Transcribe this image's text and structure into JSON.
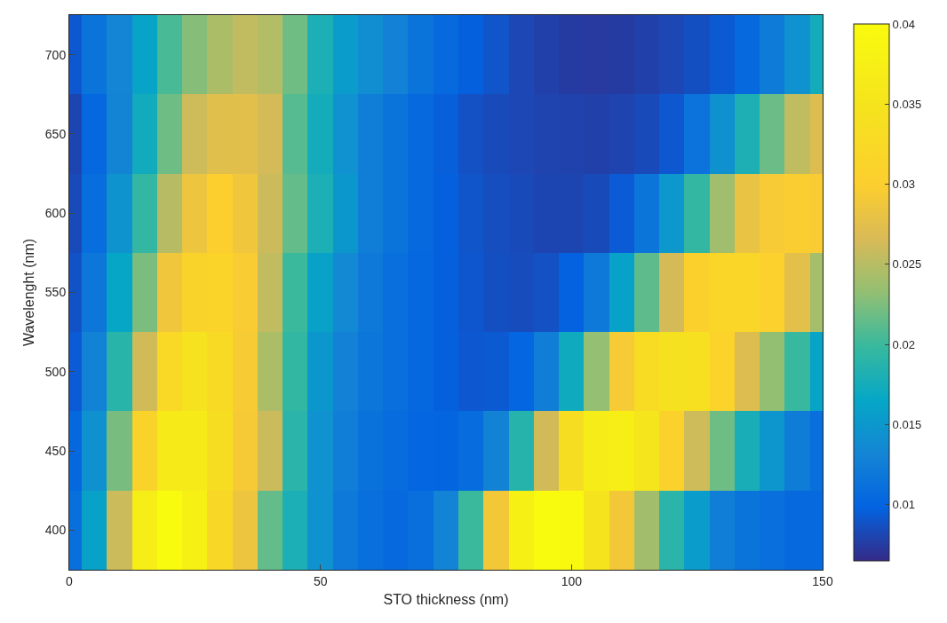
{
  "chart_data": {
    "type": "heatmap",
    "xlabel": "STO thickness (nm)",
    "ylabel": "Wavelenght (nm)",
    "x": [
      0,
      5,
      10,
      15,
      20,
      25,
      30,
      35,
      40,
      45,
      50,
      55,
      60,
      65,
      70,
      75,
      80,
      85,
      90,
      95,
      100,
      105,
      110,
      115,
      120,
      125,
      130,
      135,
      140,
      145,
      150
    ],
    "y_categories": [
      "700",
      "650",
      "600",
      "550",
      "500",
      "450",
      "400"
    ],
    "cells": [
      [
        0.0092,
        0.0115,
        0.0132,
        0.0163,
        0.0205,
        0.0228,
        0.0245,
        0.0255,
        0.0248,
        0.022,
        0.018,
        0.0155,
        0.014,
        0.0128,
        0.0115,
        0.0105,
        0.0097,
        0.009,
        0.0082,
        0.0078,
        0.0075,
        0.0074,
        0.0075,
        0.0078,
        0.0082,
        0.0087,
        0.0093,
        0.0105,
        0.0122,
        0.0145,
        0.0175
      ],
      [
        0.0081,
        0.0103,
        0.0131,
        0.0173,
        0.0219,
        0.0261,
        0.0274,
        0.0275,
        0.0264,
        0.021,
        0.0175,
        0.0145,
        0.0125,
        0.0115,
        0.0105,
        0.0096,
        0.0088,
        0.0084,
        0.0082,
        0.008,
        0.0079,
        0.0078,
        0.008,
        0.0084,
        0.0092,
        0.0114,
        0.0143,
        0.0181,
        0.0218,
        0.0254,
        0.0271
      ],
      [
        0.0084,
        0.0109,
        0.0146,
        0.0196,
        0.025,
        0.0285,
        0.03,
        0.0288,
        0.026,
        0.0215,
        0.018,
        0.015,
        0.0125,
        0.0115,
        0.0105,
        0.0097,
        0.009,
        0.0086,
        0.0084,
        0.0081,
        0.0081,
        0.0084,
        0.0094,
        0.0116,
        0.0151,
        0.0196,
        0.0239,
        0.0281,
        0.0294,
        0.0298,
        0.0296
      ],
      [
        0.0089,
        0.0118,
        0.0165,
        0.0224,
        0.0288,
        0.0311,
        0.0313,
        0.0296,
        0.0255,
        0.02,
        0.016,
        0.0135,
        0.012,
        0.011,
        0.0103,
        0.0097,
        0.0091,
        0.0087,
        0.0085,
        0.0088,
        0.0098,
        0.012,
        0.0161,
        0.0213,
        0.0264,
        0.0304,
        0.0318,
        0.0317,
        0.0303,
        0.0276,
        0.0241
      ],
      [
        0.0094,
        0.0129,
        0.0189,
        0.0262,
        0.0324,
        0.0345,
        0.0328,
        0.0295,
        0.0245,
        0.0195,
        0.015,
        0.0128,
        0.0117,
        0.011,
        0.0103,
        0.0097,
        0.0092,
        0.0093,
        0.0101,
        0.0124,
        0.0172,
        0.0234,
        0.0294,
        0.0332,
        0.0344,
        0.034,
        0.031,
        0.0271,
        0.0233,
        0.0198,
        0.0163
      ],
      [
        0.0103,
        0.0144,
        0.0223,
        0.0312,
        0.0362,
        0.0365,
        0.0334,
        0.0293,
        0.026,
        0.019,
        0.0145,
        0.0125,
        0.0113,
        0.0107,
        0.0101,
        0.01,
        0.0107,
        0.0129,
        0.0187,
        0.0262,
        0.0334,
        0.0367,
        0.0372,
        0.0352,
        0.0309,
        0.0261,
        0.0219,
        0.0178,
        0.0149,
        0.0123,
        0.011
      ],
      [
        0.011,
        0.016,
        0.026,
        0.037,
        0.04,
        0.0375,
        0.032,
        0.0285,
        0.0215,
        0.018,
        0.0145,
        0.012,
        0.011,
        0.0105,
        0.011,
        0.013,
        0.02,
        0.029,
        0.0375,
        0.04,
        0.0395,
        0.035,
        0.029,
        0.024,
        0.019,
        0.0155,
        0.0125,
        0.0115,
        0.011,
        0.0105,
        0.0105
      ]
    ],
    "xlim": [
      0,
      150
    ],
    "xticks": [
      0,
      50,
      100,
      150
    ],
    "clim": [
      0.0065,
      0.04
    ],
    "cticks": [
      0.01,
      0.015,
      0.02,
      0.025,
      0.03,
      0.035,
      0.04
    ]
  }
}
